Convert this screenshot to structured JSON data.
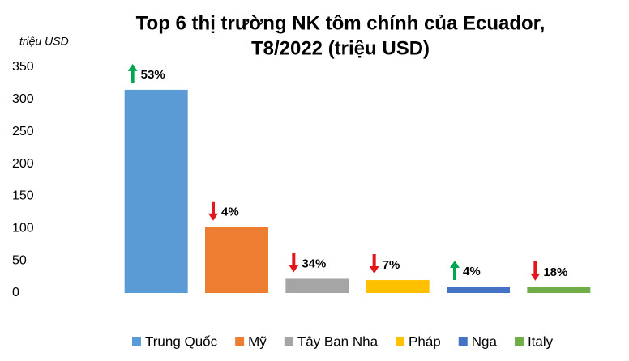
{
  "chart_data": {
    "type": "bar",
    "title": [
      "Top 6 thị trường NK tôm chính của Ecuador,",
      "T8/2022 (triệu USD)"
    ],
    "y_label": "triệu USD",
    "categories": [
      null
    ],
    "series": [
      {
        "name": "Trung Quốc",
        "color": "#5b9bd5",
        "values": [
          315
        ],
        "change_label": "53%",
        "trend": "up"
      },
      {
        "name": "Mỹ",
        "color": "#ed7d31",
        "values": [
          102
        ],
        "change_label": "4%",
        "trend": "down"
      },
      {
        "name": "Tây Ban Nha",
        "color": "#a5a5a5",
        "values": [
          22
        ],
        "change_label": "34%",
        "trend": "down"
      },
      {
        "name": "Pháp",
        "color": "#ffc000",
        "values": [
          20
        ],
        "change_label": "7%",
        "trend": "down"
      },
      {
        "name": "Nga",
        "color": "#4472c4",
        "values": [
          10
        ],
        "change_label": "4%",
        "trend": "up"
      },
      {
        "name": "Italy",
        "color": "#70ad47",
        "values": [
          9
        ],
        "change_label": "18%",
        "trend": "down"
      }
    ],
    "trend_colors": {
      "up": "#00a651",
      "down": "#e3161d"
    },
    "ylim": [
      0,
      350
    ],
    "yticks": [
      0,
      50,
      100,
      150,
      200,
      250,
      300,
      350
    ],
    "grid": false,
    "legend": "bottom"
  }
}
